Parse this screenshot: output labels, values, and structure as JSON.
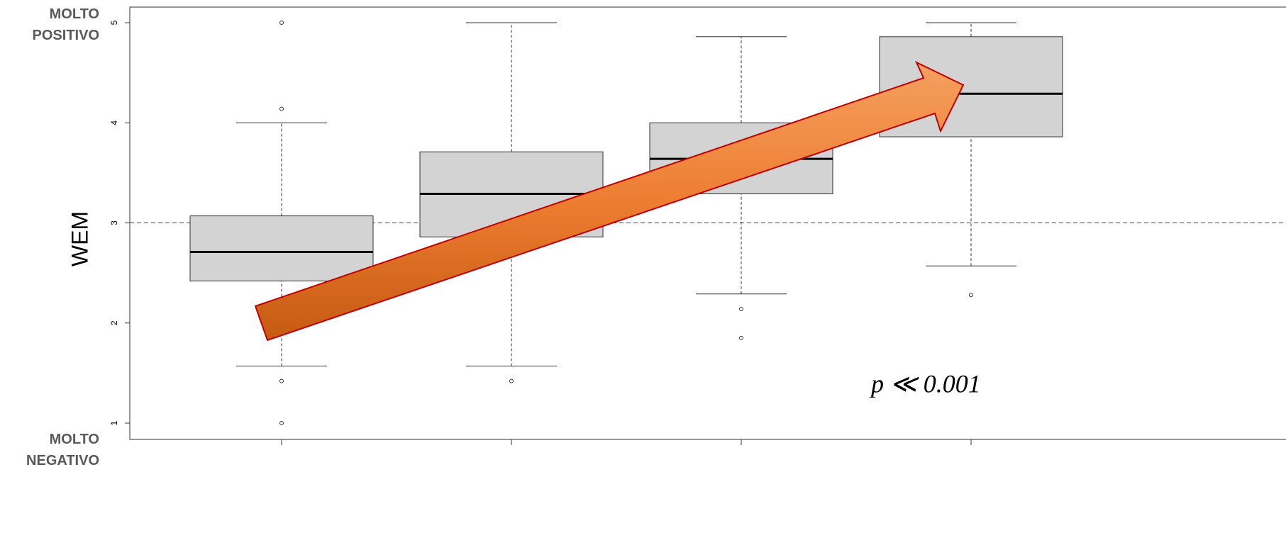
{
  "chart_data": {
    "type": "boxplot",
    "y_label": "WEM",
    "top_label": "MOLTO POSITIVO",
    "bottom_label": "MOLTO NEGATIVO",
    "annotation": "p ≪ 0.001",
    "categories": [
      null,
      null,
      null,
      null
    ],
    "boxes": [
      {
        "whisker_low": 1.57,
        "q1": 2.42,
        "median": 2.71,
        "q3": 3.07,
        "whisker_high": 4.0,
        "outliers": [
          5.0,
          4.14,
          1.42,
          1.0
        ]
      },
      {
        "whisker_low": 1.57,
        "q1": 2.86,
        "median": 3.29,
        "q3": 3.71,
        "whisker_high": 5.0,
        "outliers": [
          1.42
        ]
      },
      {
        "whisker_low": 2.29,
        "q1": 3.29,
        "median": 3.64,
        "q3": 4.0,
        "whisker_high": 4.86,
        "outliers": [
          2.14,
          1.85
        ]
      },
      {
        "whisker_low": 2.57,
        "q1": 3.86,
        "median": 4.29,
        "q3": 4.86,
        "whisker_high": 5.0,
        "outliers": [
          2.28
        ]
      }
    ],
    "color": "#d3d3d3",
    "reference_line": 3,
    "ylim": [
      0.837,
      5.156
    ],
    "yticks": [
      1,
      2,
      3,
      4,
      5
    ]
  }
}
